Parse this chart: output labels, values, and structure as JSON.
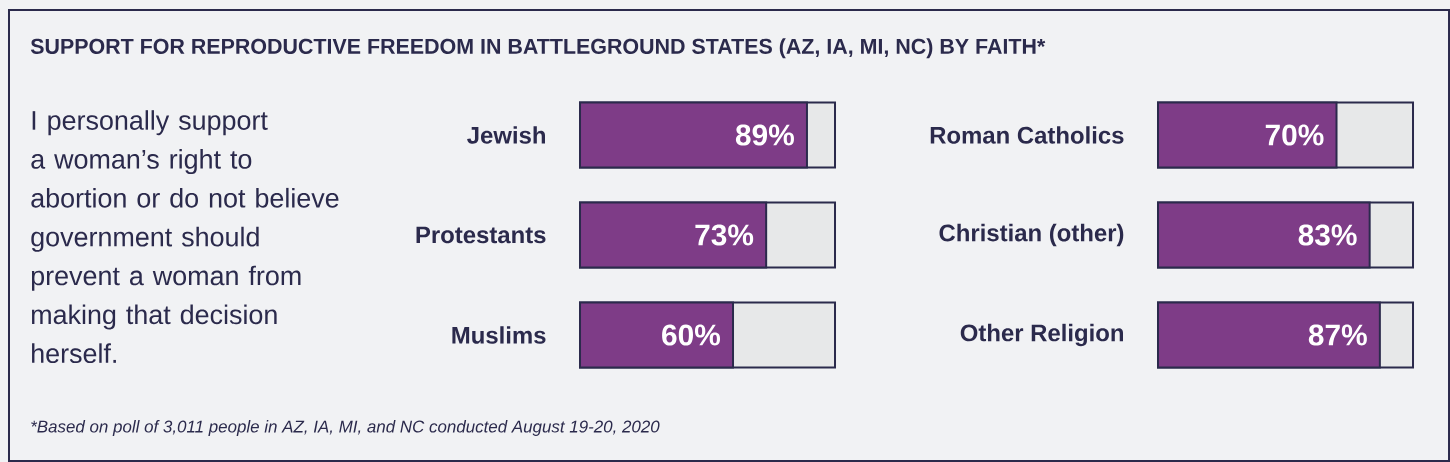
{
  "chart_data": [
    {
      "type": "bar",
      "title": "SUPPORT FOR REPRODUCTIVE FREEDOM IN BATTLEGROUND STATES (AZ, IA, MI, NC) BY FAITH*",
      "subtitle": "I personally support a woman’s right to abortion or do not believe government should prevent a woman from making that decision herself.",
      "annotations": [
        "*Based on poll of 3,011 people in AZ, IA, MI, and NC conducted August 19-20, 2020"
      ],
      "orientation": "horizontal",
      "xlim": [
        0,
        100
      ],
      "tick_labels": "y",
      "categories": [
        "Jewish",
        "Protestants",
        "Muslims"
      ],
      "series": [
        {
          "color": "#7e3c87",
          "values": [
            89,
            73,
            60
          ],
          "value_labels": [
            "89%",
            "73%",
            "60%"
          ]
        }
      ]
    },
    {
      "type": "bar",
      "orientation": "horizontal",
      "xlim": [
        0,
        100
      ],
      "tick_labels": "y",
      "categories": [
        "Roman Catholics",
        "Christian (other)",
        "Other Religion"
      ],
      "series": [
        {
          "color": "#7e3c87",
          "values": [
            70,
            83,
            87
          ],
          "value_labels": [
            "70%",
            "83%",
            "87%"
          ]
        }
      ]
    }
  ]
}
